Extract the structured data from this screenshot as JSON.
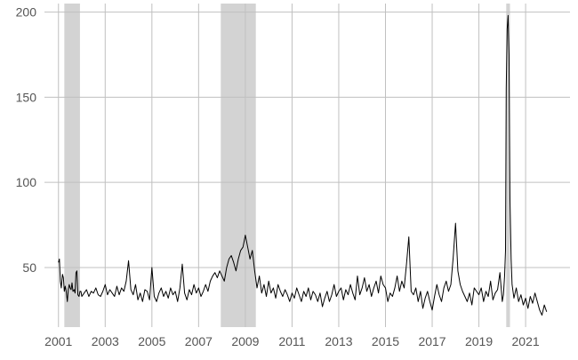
{
  "chart_data": {
    "type": "line",
    "title": "",
    "xlabel": "",
    "ylabel": "",
    "x_ticks": [
      "2001",
      "2003",
      "2005",
      "2007",
      "2009",
      "2011",
      "2013",
      "2015",
      "2017",
      "2019",
      "2021"
    ],
    "y_ticks": [
      50,
      100,
      150,
      200
    ],
    "xlim": [
      2000.4,
      2022.9
    ],
    "ylim": [
      15,
      205
    ],
    "grid": true,
    "legend": "none",
    "colors": {
      "line": "#000000",
      "shade": "#d3d3d3",
      "grid": "#c0c0c0"
    },
    "shaded_periods": [
      {
        "start": 2001.25,
        "end": 2001.92
      },
      {
        "start": 2007.95,
        "end": 2009.45
      },
      {
        "start": 2020.17,
        "end": 2020.33
      }
    ],
    "series": [
      {
        "values": [
          [
            2001.0,
            53
          ],
          [
            2001.04,
            55
          ],
          [
            2001.08,
            42
          ],
          [
            2001.12,
            38
          ],
          [
            2001.17,
            46
          ],
          [
            2001.21,
            44
          ],
          [
            2001.25,
            36
          ],
          [
            2001.29,
            39
          ],
          [
            2001.33,
            36
          ],
          [
            2001.38,
            30
          ],
          [
            2001.42,
            37
          ],
          [
            2001.46,
            40
          ],
          [
            2001.5,
            38
          ],
          [
            2001.54,
            37
          ],
          [
            2001.58,
            41
          ],
          [
            2001.62,
            36
          ],
          [
            2001.67,
            37
          ],
          [
            2001.71,
            35
          ],
          [
            2001.75,
            47
          ],
          [
            2001.79,
            48
          ],
          [
            2001.83,
            34
          ],
          [
            2001.88,
            33
          ],
          [
            2001.92,
            36
          ],
          [
            2001.96,
            36
          ],
          [
            2002.0,
            33
          ],
          [
            2002.1,
            35
          ],
          [
            2002.2,
            37
          ],
          [
            2002.3,
            33
          ],
          [
            2002.4,
            36
          ],
          [
            2002.5,
            35
          ],
          [
            2002.6,
            38
          ],
          [
            2002.7,
            34
          ],
          [
            2002.8,
            33
          ],
          [
            2002.9,
            36
          ],
          [
            2003.0,
            40
          ],
          [
            2003.1,
            34
          ],
          [
            2003.2,
            37
          ],
          [
            2003.3,
            35
          ],
          [
            2003.4,
            33
          ],
          [
            2003.5,
            39
          ],
          [
            2003.6,
            34
          ],
          [
            2003.7,
            38
          ],
          [
            2003.8,
            36
          ],
          [
            2003.9,
            42
          ],
          [
            2004.0,
            54
          ],
          [
            2004.1,
            37
          ],
          [
            2004.2,
            34
          ],
          [
            2004.3,
            40
          ],
          [
            2004.4,
            31
          ],
          [
            2004.5,
            35
          ],
          [
            2004.6,
            30
          ],
          [
            2004.7,
            37
          ],
          [
            2004.8,
            36
          ],
          [
            2004.9,
            31
          ],
          [
            2005.0,
            50
          ],
          [
            2005.1,
            33
          ],
          [
            2005.2,
            30
          ],
          [
            2005.3,
            35
          ],
          [
            2005.4,
            38
          ],
          [
            2005.5,
            33
          ],
          [
            2005.6,
            36
          ],
          [
            2005.7,
            32
          ],
          [
            2005.8,
            38
          ],
          [
            2005.9,
            34
          ],
          [
            2006.0,
            36
          ],
          [
            2006.1,
            30
          ],
          [
            2006.2,
            38
          ],
          [
            2006.3,
            52
          ],
          [
            2006.4,
            35
          ],
          [
            2006.5,
            31
          ],
          [
            2006.6,
            37
          ],
          [
            2006.7,
            34
          ],
          [
            2006.8,
            40
          ],
          [
            2006.9,
            35
          ],
          [
            2007.0,
            38
          ],
          [
            2007.1,
            33
          ],
          [
            2007.2,
            36
          ],
          [
            2007.3,
            40
          ],
          [
            2007.4,
            36
          ],
          [
            2007.5,
            42
          ],
          [
            2007.6,
            45
          ],
          [
            2007.7,
            47
          ],
          [
            2007.8,
            44
          ],
          [
            2007.9,
            48
          ],
          [
            2008.0,
            45
          ],
          [
            2008.1,
            42
          ],
          [
            2008.2,
            50
          ],
          [
            2008.3,
            55
          ],
          [
            2008.4,
            57
          ],
          [
            2008.5,
            53
          ],
          [
            2008.6,
            48
          ],
          [
            2008.7,
            55
          ],
          [
            2008.8,
            60
          ],
          [
            2008.9,
            62
          ],
          [
            2009.0,
            69
          ],
          [
            2009.1,
            62
          ],
          [
            2009.2,
            55
          ],
          [
            2009.3,
            60
          ],
          [
            2009.4,
            48
          ],
          [
            2009.5,
            38
          ],
          [
            2009.6,
            45
          ],
          [
            2009.7,
            35
          ],
          [
            2009.8,
            40
          ],
          [
            2009.9,
            33
          ],
          [
            2010.0,
            42
          ],
          [
            2010.1,
            35
          ],
          [
            2010.2,
            38
          ],
          [
            2010.3,
            32
          ],
          [
            2010.4,
            40
          ],
          [
            2010.5,
            36
          ],
          [
            2010.6,
            33
          ],
          [
            2010.7,
            37
          ],
          [
            2010.8,
            34
          ],
          [
            2010.9,
            30
          ],
          [
            2011.0,
            35
          ],
          [
            2011.1,
            32
          ],
          [
            2011.2,
            38
          ],
          [
            2011.3,
            34
          ],
          [
            2011.4,
            30
          ],
          [
            2011.5,
            36
          ],
          [
            2011.6,
            33
          ],
          [
            2011.7,
            38
          ],
          [
            2011.8,
            31
          ],
          [
            2011.9,
            36
          ],
          [
            2012.0,
            34
          ],
          [
            2012.1,
            30
          ],
          [
            2012.2,
            35
          ],
          [
            2012.3,
            27
          ],
          [
            2012.4,
            32
          ],
          [
            2012.5,
            36
          ],
          [
            2012.6,
            30
          ],
          [
            2012.7,
            34
          ],
          [
            2012.8,
            40
          ],
          [
            2012.9,
            33
          ],
          [
            2013.0,
            36
          ],
          [
            2013.1,
            38
          ],
          [
            2013.2,
            31
          ],
          [
            2013.3,
            37
          ],
          [
            2013.4,
            34
          ],
          [
            2013.5,
            40
          ],
          [
            2013.6,
            35
          ],
          [
            2013.7,
            31
          ],
          [
            2013.8,
            45
          ],
          [
            2013.9,
            34
          ],
          [
            2014.0,
            38
          ],
          [
            2014.1,
            44
          ],
          [
            2014.2,
            36
          ],
          [
            2014.3,
            40
          ],
          [
            2014.4,
            33
          ],
          [
            2014.5,
            38
          ],
          [
            2014.6,
            42
          ],
          [
            2014.7,
            35
          ],
          [
            2014.8,
            45
          ],
          [
            2014.9,
            40
          ],
          [
            2015.0,
            38
          ],
          [
            2015.1,
            30
          ],
          [
            2015.2,
            35
          ],
          [
            2015.3,
            33
          ],
          [
            2015.4,
            38
          ],
          [
            2015.5,
            45
          ],
          [
            2015.6,
            36
          ],
          [
            2015.7,
            42
          ],
          [
            2015.8,
            38
          ],
          [
            2015.9,
            52
          ],
          [
            2016.0,
            68
          ],
          [
            2016.1,
            36
          ],
          [
            2016.2,
            34
          ],
          [
            2016.3,
            38
          ],
          [
            2016.4,
            30
          ],
          [
            2016.5,
            36
          ],
          [
            2016.6,
            26
          ],
          [
            2016.7,
            32
          ],
          [
            2016.8,
            36
          ],
          [
            2016.9,
            30
          ],
          [
            2017.0,
            25
          ],
          [
            2017.1,
            33
          ],
          [
            2017.2,
            40
          ],
          [
            2017.3,
            34
          ],
          [
            2017.4,
            30
          ],
          [
            2017.5,
            38
          ],
          [
            2017.6,
            42
          ],
          [
            2017.7,
            36
          ],
          [
            2017.8,
            40
          ],
          [
            2017.9,
            56
          ],
          [
            2018.0,
            76
          ],
          [
            2018.1,
            48
          ],
          [
            2018.2,
            40
          ],
          [
            2018.3,
            36
          ],
          [
            2018.4,
            33
          ],
          [
            2018.5,
            30
          ],
          [
            2018.6,
            35
          ],
          [
            2018.7,
            28
          ],
          [
            2018.8,
            38
          ],
          [
            2018.9,
            36
          ],
          [
            2019.0,
            34
          ],
          [
            2019.1,
            38
          ],
          [
            2019.2,
            30
          ],
          [
            2019.3,
            36
          ],
          [
            2019.4,
            33
          ],
          [
            2019.5,
            42
          ],
          [
            2019.6,
            31
          ],
          [
            2019.7,
            35
          ],
          [
            2019.8,
            37
          ],
          [
            2019.9,
            47
          ],
          [
            2020.0,
            30
          ],
          [
            2020.05,
            34
          ],
          [
            2020.1,
            45
          ],
          [
            2020.14,
            60
          ],
          [
            2020.17,
            155
          ],
          [
            2020.21,
            190
          ],
          [
            2020.25,
            198
          ],
          [
            2020.29,
            175
          ],
          [
            2020.33,
            90
          ],
          [
            2020.38,
            55
          ],
          [
            2020.42,
            40
          ],
          [
            2020.5,
            32
          ],
          [
            2020.6,
            38
          ],
          [
            2020.7,
            30
          ],
          [
            2020.8,
            34
          ],
          [
            2020.9,
            28
          ],
          [
            2021.0,
            32
          ],
          [
            2021.1,
            26
          ],
          [
            2021.2,
            33
          ],
          [
            2021.3,
            29
          ],
          [
            2021.4,
            35
          ],
          [
            2021.5,
            30
          ],
          [
            2021.6,
            25
          ],
          [
            2021.7,
            22
          ],
          [
            2021.8,
            28
          ],
          [
            2021.9,
            24
          ]
        ]
      }
    ]
  }
}
